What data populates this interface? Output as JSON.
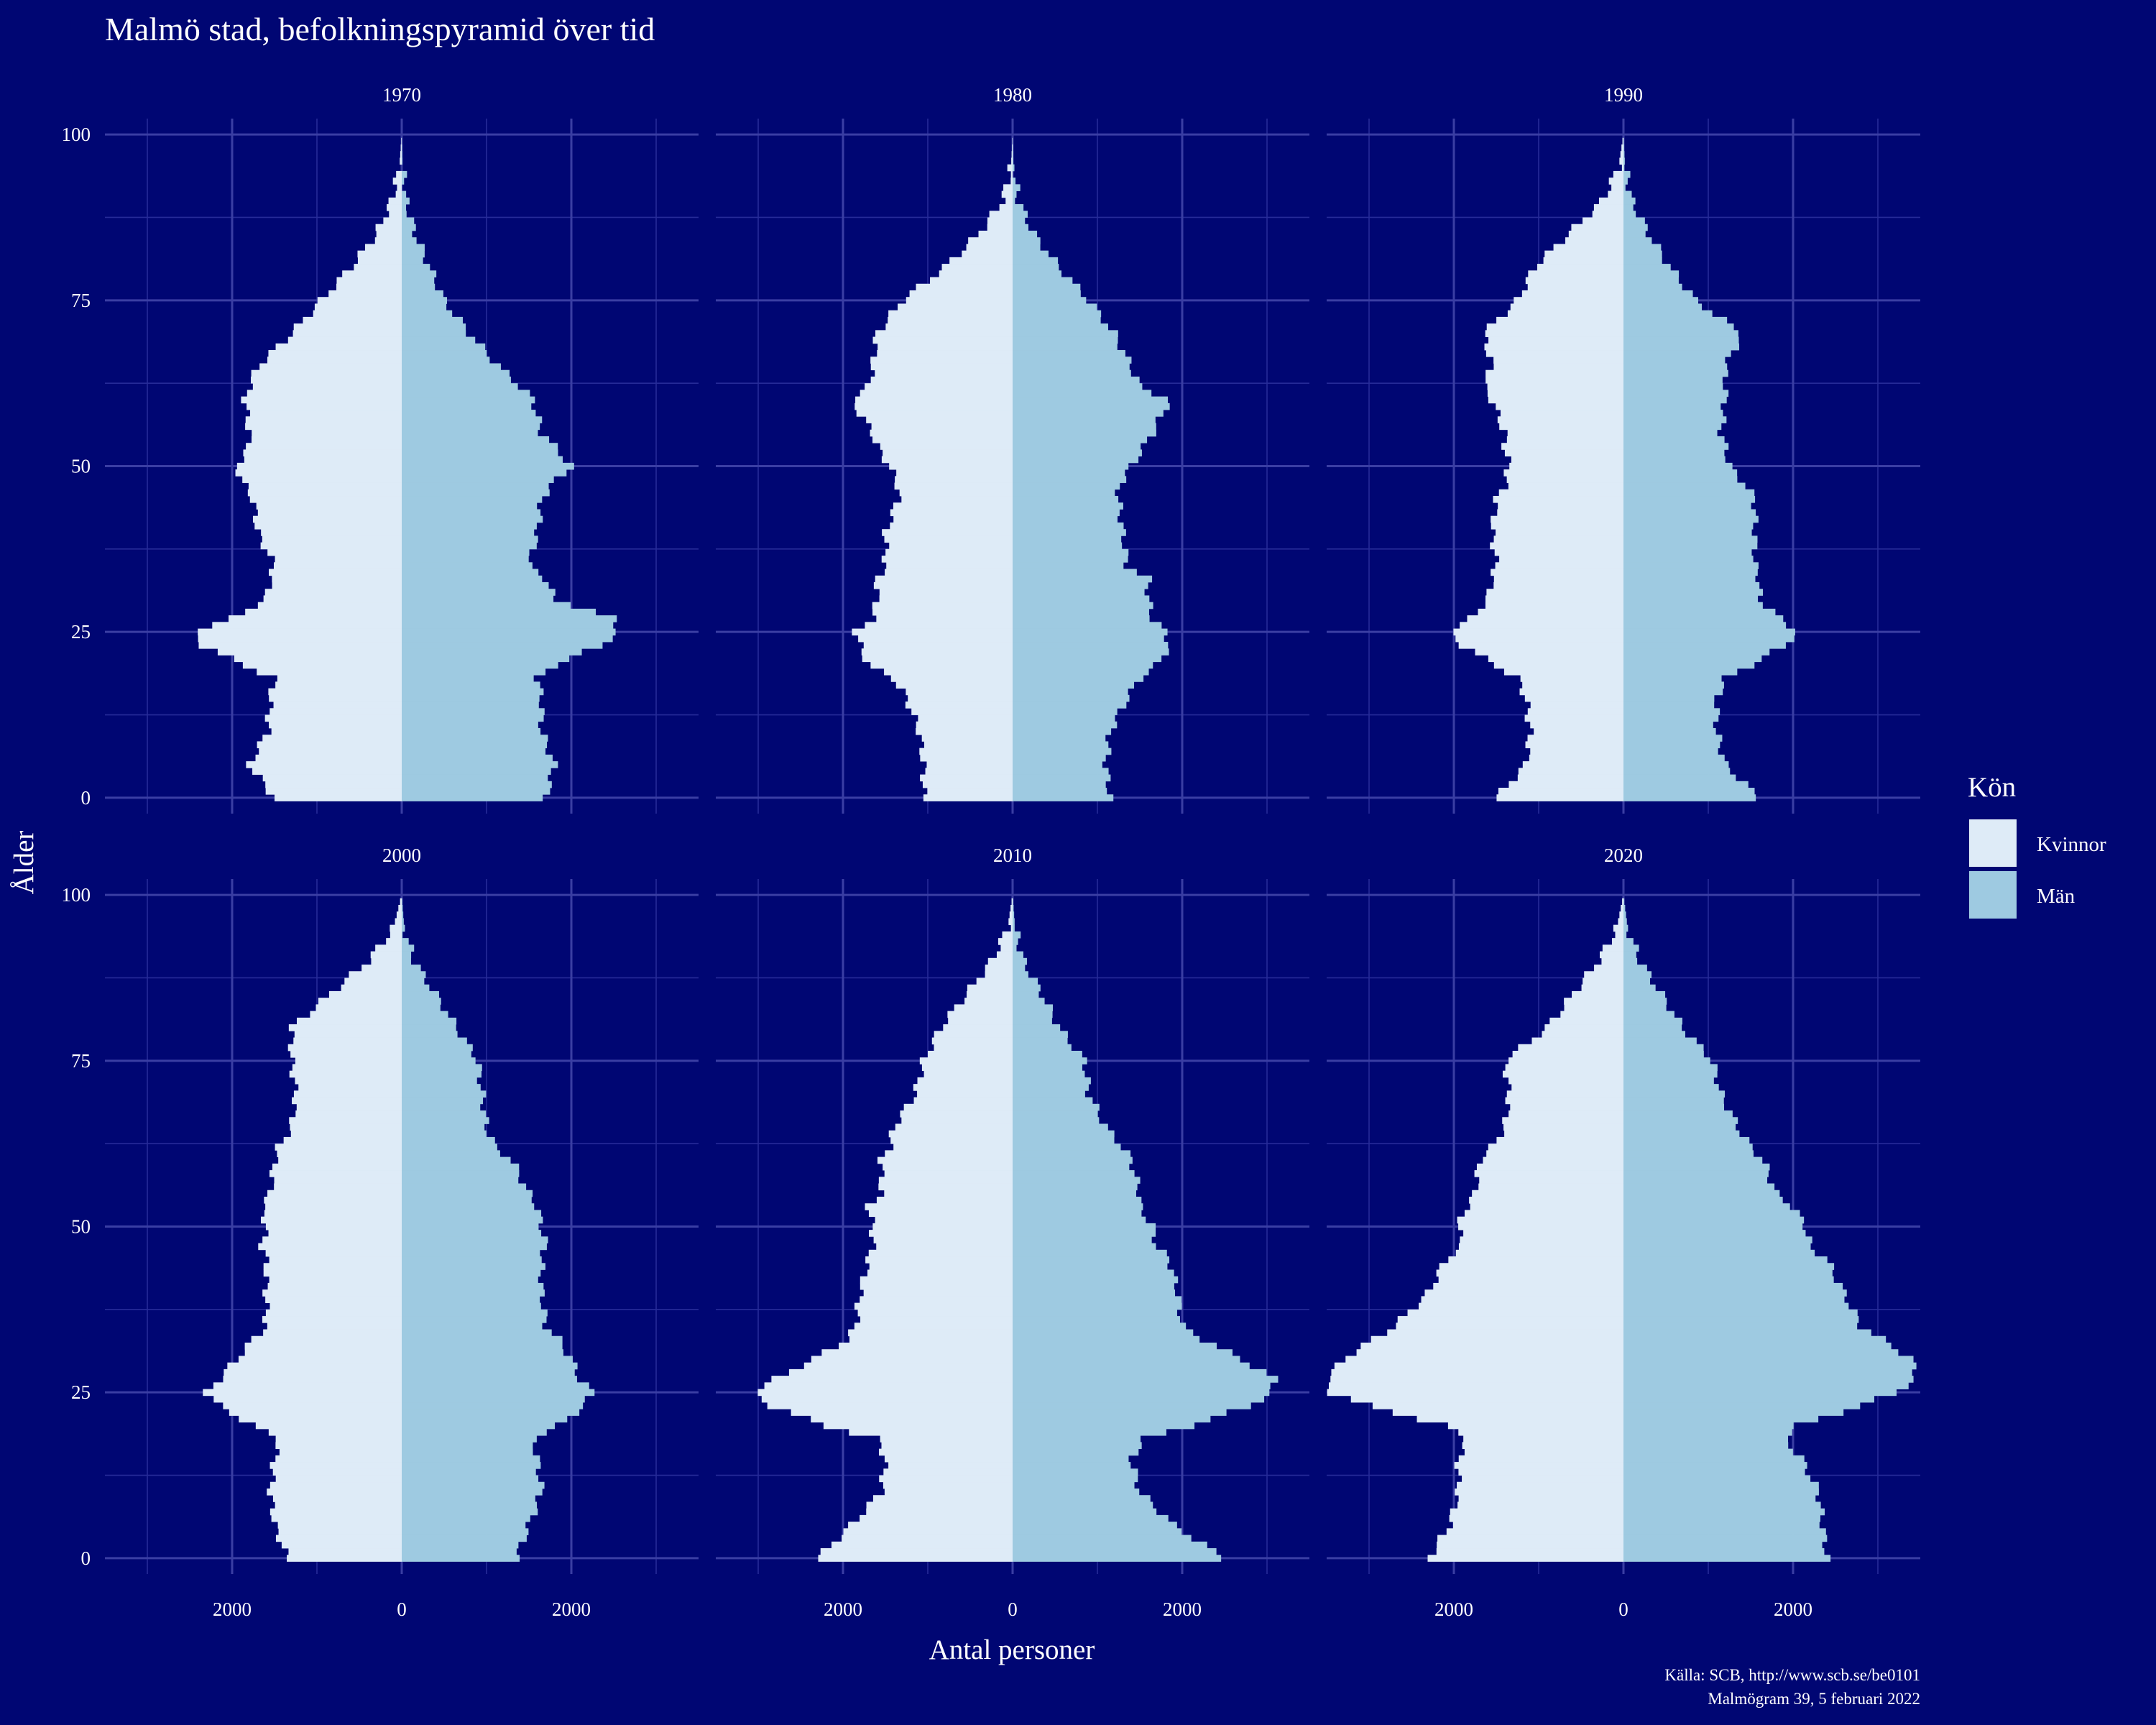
{
  "chart_data": {
    "type": "bar",
    "subtype": "population-pyramid",
    "title": "Malmö stad, befolkningspyramid över tid",
    "xlabel": "Antal personer",
    "ylabel": "Ålder",
    "xlim": [
      -3500,
      3500
    ],
    "ylim": [
      0,
      100
    ],
    "x_ticks": [
      -2000,
      0,
      2000
    ],
    "x_tick_labels": [
      "2000",
      "0",
      "2000"
    ],
    "y_ticks": [
      0,
      25,
      50,
      75,
      100
    ],
    "y_tick_labels": [
      "0",
      "25",
      "50",
      "75",
      "100"
    ],
    "grid": true,
    "legend": {
      "title": "Kön",
      "position": "right",
      "entries": [
        {
          "label": "Kvinnor",
          "color": "#deebf7"
        },
        {
          "label": "Män",
          "color": "#9ecae1"
        }
      ]
    },
    "colors": {
      "background": "#000673",
      "kvinnor": "#deebf7",
      "man": "#9ecae1"
    },
    "caption": [
      "Källa: SCB, http://www.scb.se/be0101",
      "Malmögram 39, 5 februari 2022"
    ],
    "age_anchors": [
      0,
      5,
      10,
      15,
      18,
      20,
      23,
      25,
      27,
      30,
      33,
      35,
      40,
      45,
      47,
      50,
      53,
      55,
      60,
      62,
      65,
      70,
      75,
      80,
      85,
      90,
      95,
      100
    ],
    "panels": [
      {
        "year": "1970",
        "kvinnor": [
          1500,
          1800,
          1580,
          1550,
          1500,
          1850,
          2350,
          2450,
          2000,
          1600,
          1550,
          1500,
          1700,
          1750,
          1850,
          1950,
          1800,
          1800,
          1850,
          1800,
          1700,
          1300,
          950,
          600,
          300,
          120,
          30,
          0
        ],
        "man": [
          1700,
          1800,
          1650,
          1650,
          1600,
          1800,
          2350,
          2550,
          2500,
          1800,
          1700,
          1500,
          1600,
          1650,
          1750,
          2000,
          1800,
          1650,
          1550,
          1400,
          1150,
          800,
          500,
          330,
          160,
          50,
          10,
          0
        ]
      },
      {
        "year": "1980",
        "kvinnor": [
          1050,
          1050,
          1100,
          1250,
          1400,
          1700,
          1800,
          1850,
          1650,
          1600,
          1600,
          1500,
          1500,
          1350,
          1350,
          1450,
          1600,
          1650,
          1900,
          1700,
          1650,
          1600,
          1300,
          800,
          400,
          120,
          20,
          0
        ],
        "man": [
          1150,
          1100,
          1150,
          1350,
          1500,
          1700,
          1850,
          1800,
          1650,
          1600,
          1600,
          1350,
          1300,
          1250,
          1250,
          1400,
          1550,
          1650,
          1850,
          1500,
          1400,
          1200,
          900,
          550,
          250,
          70,
          10,
          0
        ]
      },
      {
        "year": "1990",
        "kvinnor": [
          1500,
          1150,
          1100,
          1150,
          1250,
          1500,
          1900,
          2050,
          1800,
          1600,
          1550,
          1500,
          1550,
          1500,
          1400,
          1350,
          1400,
          1400,
          1550,
          1650,
          1550,
          1650,
          1250,
          1050,
          650,
          250,
          60,
          0
        ],
        "man": [
          1600,
          1200,
          1100,
          1100,
          1200,
          1500,
          1900,
          2050,
          1850,
          1600,
          1600,
          1550,
          1550,
          1550,
          1450,
          1250,
          1200,
          1150,
          1200,
          1200,
          1200,
          1400,
          850,
          550,
          300,
          100,
          20,
          0
        ]
      },
      {
        "year": "2000",
        "kvinnor": [
          1350,
          1500,
          1550,
          1500,
          1450,
          1750,
          2150,
          2300,
          2150,
          1950,
          1750,
          1600,
          1600,
          1600,
          1650,
          1600,
          1650,
          1550,
          1500,
          1450,
          1300,
          1250,
          1300,
          1300,
          850,
          400,
          100,
          0
        ],
        "man": [
          1350,
          1500,
          1650,
          1600,
          1550,
          1850,
          2150,
          2250,
          2100,
          2000,
          1850,
          1700,
          1650,
          1650,
          1700,
          1650,
          1600,
          1500,
          1300,
          1100,
          1000,
          950,
          900,
          650,
          400,
          150,
          30,
          0
        ]
      },
      {
        "year": "2010",
        "kvinnor": [
          2300,
          1900,
          1550,
          1500,
          1600,
          2200,
          2850,
          3050,
          2800,
          2350,
          1950,
          1850,
          1800,
          1700,
          1650,
          1650,
          1700,
          1550,
          1550,
          1450,
          1400,
          1150,
          1050,
          850,
          550,
          250,
          60,
          0
        ],
        "man": [
          2500,
          1900,
          1500,
          1400,
          1550,
          2100,
          2800,
          3050,
          3100,
          2700,
          2250,
          2000,
          1950,
          1850,
          1700,
          1650,
          1500,
          1500,
          1400,
          1300,
          1100,
          900,
          850,
          550,
          350,
          130,
          30,
          0
        ]
      },
      {
        "year": "2020",
        "kvinnor": [
          2300,
          2050,
          1950,
          1950,
          1850,
          2100,
          3000,
          3450,
          3500,
          3300,
          2950,
          2700,
          2300,
          2100,
          1900,
          1950,
          1850,
          1750,
          1700,
          1550,
          1400,
          1350,
          1400,
          900,
          600,
          300,
          80,
          0
        ],
        "man": [
          2400,
          2350,
          2300,
          2100,
          1900,
          2050,
          2800,
          3200,
          3450,
          3400,
          3050,
          2800,
          2600,
          2400,
          2200,
          2150,
          2000,
          1800,
          1650,
          1500,
          1350,
          1150,
          1050,
          700,
          450,
          200,
          50,
          0
        ]
      }
    ]
  }
}
